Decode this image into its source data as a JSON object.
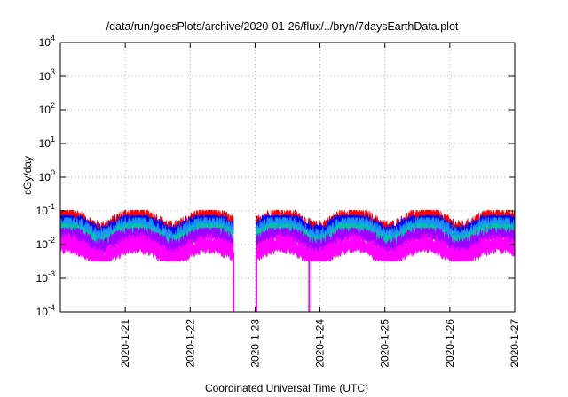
{
  "chart_data": {
    "type": "line",
    "title": "/data/run/goesPlots/archive/2020-01-26/flux/../bryn/7daysEarthData.plot",
    "xlabel": "Coordinated Universal Time (UTC)",
    "ylabel": "cGy/day",
    "y_scale": "log",
    "ylim": [
      "1e-4",
      "1e4"
    ],
    "xlim": [
      "2020-01-20",
      "2020-01-27"
    ],
    "grid": true,
    "legend": "none",
    "x_ticks": [
      "2020-1-21",
      "2020-1-22",
      "2020-1-23",
      "2020-1-24",
      "2020-1-25",
      "2020-1-26",
      "2020-1-27"
    ],
    "y_ticks": [
      {
        "base": "10",
        "exp": "-4"
      },
      {
        "base": "10",
        "exp": "-3"
      },
      {
        "base": "10",
        "exp": "-2"
      },
      {
        "base": "10",
        "exp": "-1"
      },
      {
        "base": "10",
        "exp": "0"
      },
      {
        "base": "10",
        "exp": "1"
      },
      {
        "base": "10",
        "exp": "2"
      },
      {
        "base": "10",
        "exp": "3"
      },
      {
        "base": "10",
        "exp": "4"
      }
    ],
    "data_gaps": [
      [
        "2020-01-22 16:00",
        "2020-01-23 00:30"
      ]
    ],
    "dropouts": [
      "2020-01-22 16:00",
      "2020-01-23 00:30",
      "2020-01-23 20:00"
    ],
    "series": [
      {
        "color": "#ff0000",
        "typical": 0.05,
        "peak": 0.1
      },
      {
        "color": "#0000ff",
        "typical": 0.04,
        "peak": 0.07
      },
      {
        "color": "#1e90ff",
        "typical": 0.03,
        "peak": 0.06
      },
      {
        "color": "#00c8a0",
        "typical": 0.02,
        "peak": 0.04
      },
      {
        "color": "#a000ff",
        "typical": 0.015,
        "peak": 0.03
      },
      {
        "color": "#ff00ff",
        "typical": 0.008,
        "peak": 0.025,
        "low": 0.004
      }
    ]
  }
}
